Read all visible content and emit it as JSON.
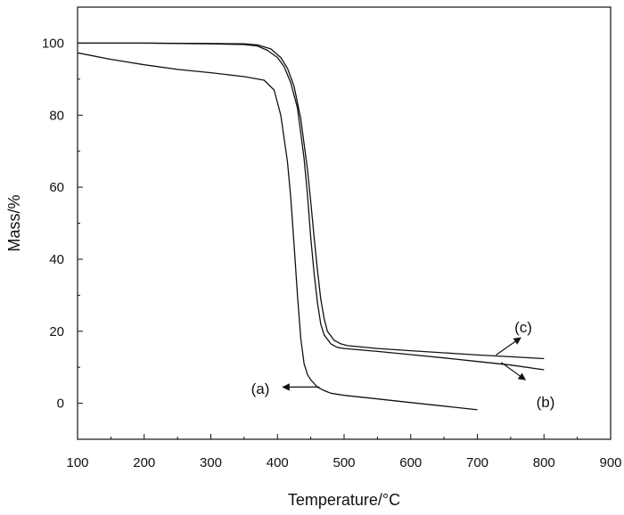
{
  "chart_data": {
    "type": "line",
    "title": "",
    "xlabel": "Temperature/°C",
    "ylabel": "Mass/%",
    "xlim": [
      100,
      900
    ],
    "ylim": [
      -10,
      110
    ],
    "xticks": [
      100,
      200,
      300,
      400,
      500,
      600,
      700,
      800,
      900
    ],
    "yticks": [
      0,
      20,
      40,
      60,
      80,
      100
    ],
    "grid": false,
    "legend": "none",
    "line_color": "#111111",
    "series": [
      {
        "label": "(a)",
        "x": [
          100,
          150,
          200,
          250,
          300,
          350,
          380,
          395,
          405,
          415,
          420,
          425,
          430,
          435,
          440,
          445,
          450,
          455,
          460,
          470,
          480,
          500,
          550,
          600,
          650,
          700
        ],
        "y": [
          97.3,
          95.5,
          94,
          92.7,
          91.8,
          90.7,
          89.7,
          87,
          80,
          67,
          57,
          44,
          30,
          18,
          11,
          8,
          6.5,
          5.5,
          4.5,
          3.5,
          2.8,
          2.2,
          1.2,
          0.2,
          -0.8,
          -1.8
        ]
      },
      {
        "label": "(b)",
        "x": [
          100,
          200,
          300,
          350,
          370,
          385,
          400,
          410,
          420,
          430,
          440,
          445,
          450,
          455,
          460,
          465,
          470,
          480,
          490,
          500,
          550,
          600,
          650,
          700,
          750,
          800
        ],
        "y": [
          100,
          100,
          99.8,
          99.6,
          99.2,
          98,
          96,
          93.5,
          89,
          82,
          68,
          58,
          46,
          36,
          28,
          22,
          19,
          16.5,
          15.5,
          15.2,
          14.4,
          13.5,
          12.6,
          11.6,
          10.6,
          9.3
        ]
      },
      {
        "label": "(c)",
        "x": [
          100,
          200,
          300,
          350,
          370,
          390,
          405,
          415,
          425,
          435,
          445,
          450,
          455,
          460,
          465,
          470,
          475,
          485,
          495,
          505,
          550,
          600,
          650,
          700,
          750,
          800
        ],
        "y": [
          100,
          100,
          99.9,
          99.8,
          99.5,
          98.4,
          96,
          93,
          88,
          79,
          65,
          56,
          46,
          37,
          29,
          23.5,
          20,
          17.5,
          16.5,
          16,
          15.2,
          14.6,
          14,
          13.4,
          12.9,
          12.4
        ]
      }
    ],
    "annotations": [
      {
        "text": "(a)",
        "arrow_from": [
          463,
          4.5
        ],
        "arrow_to": [
          408,
          4.5
        ]
      },
      {
        "text": "(b)",
        "arrow_from": [
          736,
          11.3
        ],
        "arrow_to": [
          772,
          6.5
        ]
      },
      {
        "text": "(c)",
        "arrow_from": [
          728,
          13.4
        ],
        "arrow_to": [
          765,
          18.2
        ]
      }
    ]
  }
}
